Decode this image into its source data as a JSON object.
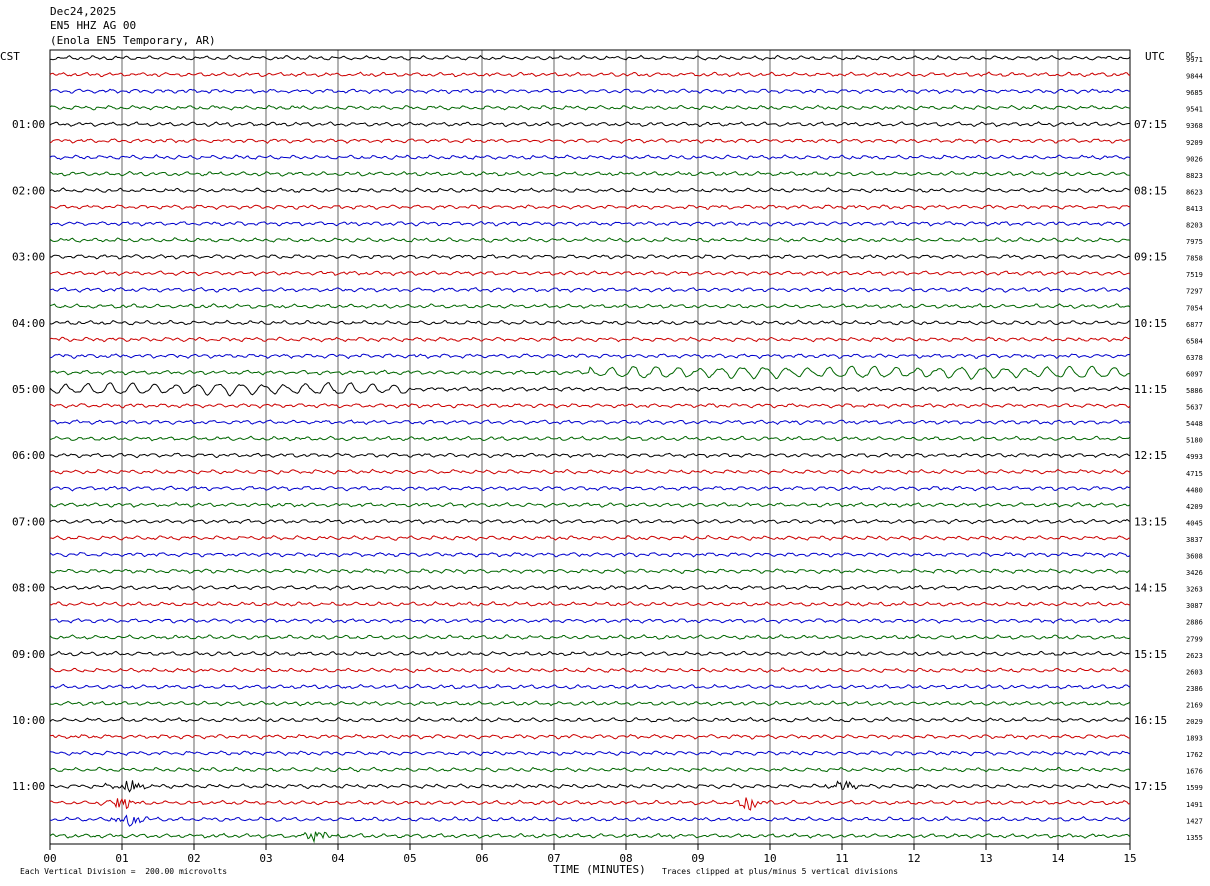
{
  "header": {
    "date": "Dec24,2025",
    "channel": "EN5 HHZ AG 00",
    "station": "(Enola EN5 Temporary, AR)"
  },
  "left_tz": "CST",
  "right_tz": "UTC",
  "dc_label": "DC",
  "footer": {
    "scale": "Each Vertical Division =  200.00 microvolts",
    "xlabel": "TIME (MINUTES)",
    "clip": "Traces clipped at plus/minus 5 vertical divisions"
  },
  "colors": {
    "trace_cycle": [
      "#000000",
      "#cc0000",
      "#0000cc",
      "#006600"
    ],
    "grid": "#000000"
  },
  "chart_data": {
    "type": "line",
    "title": "EN5 HHZ AG 00",
    "xlabel": "TIME (MINUTES)",
    "xlim": [
      0,
      15
    ],
    "x_ticks": [
      "00",
      "01",
      "02",
      "03",
      "04",
      "05",
      "06",
      "07",
      "08",
      "09",
      "10",
      "11",
      "12",
      "13",
      "14",
      "15"
    ],
    "rows_per_hour": 4,
    "row_count": 48,
    "left_hour_labels": [
      "01:00",
      "02:00",
      "03:00",
      "04:00",
      "05:00",
      "06:00",
      "07:00",
      "08:00",
      "09:00",
      "10:00",
      "11:00"
    ],
    "right_hour_labels": [
      "07:15",
      "08:15",
      "09:15",
      "10:15",
      "11:15",
      "12:15",
      "13:15",
      "14:15",
      "15:15",
      "16:15",
      "17:15"
    ],
    "dc_values": [
      "9971",
      "9844",
      "9685",
      "9541",
      "9368",
      "9209",
      "9026",
      "8823",
      "8623",
      "8413",
      "8203",
      "7975",
      "7858",
      "7519",
      "7297",
      "7054",
      "6877",
      "6584",
      "6378",
      "6097",
      "5886",
      "5637",
      "5448",
      "5180",
      "4993",
      "4715",
      "4480",
      "4209",
      "4045",
      "3837",
      "3608",
      "3426",
      "3263",
      "3087",
      "2886",
      "2799",
      "2623",
      "2603",
      "2386",
      "2169",
      "2029",
      "1893",
      "1762",
      "1676",
      "1599",
      "1491",
      "1427",
      "1355"
    ],
    "events": [
      {
        "row": 19,
        "minute_start": 7.5,
        "minute_end": 15.0,
        "kind": "long-period wave"
      },
      {
        "row": 20,
        "minute_start": 0.0,
        "minute_end": 5.0,
        "kind": "long-period wave"
      },
      {
        "row": 44,
        "minute": 1.1,
        "kind": "burst"
      },
      {
        "row": 44,
        "minute": 11.0,
        "kind": "burst"
      },
      {
        "row": 45,
        "minute": 1.0,
        "kind": "burst"
      },
      {
        "row": 45,
        "minute": 9.7,
        "kind": "burst"
      },
      {
        "row": 46,
        "minute": 1.1,
        "kind": "burst"
      },
      {
        "row": 47,
        "minute": 3.7,
        "kind": "burst"
      }
    ]
  }
}
